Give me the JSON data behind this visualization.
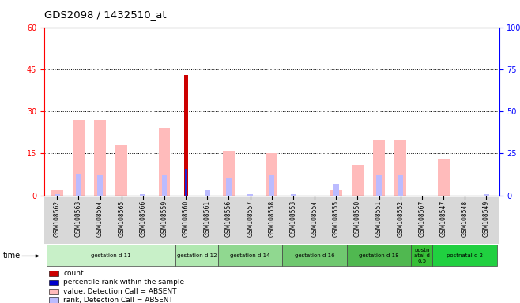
{
  "title": "GDS2098 / 1432510_at",
  "samples": [
    "GSM108562",
    "GSM108563",
    "GSM108564",
    "GSM108565",
    "GSM108566",
    "GSM108559",
    "GSM108560",
    "GSM108561",
    "GSM108556",
    "GSM108557",
    "GSM108558",
    "GSM108553",
    "GSM108554",
    "GSM108555",
    "GSM108550",
    "GSM108551",
    "GSM108552",
    "GSM108567",
    "GSM108547",
    "GSM108548",
    "GSM108549"
  ],
  "pink_values": [
    2,
    27,
    27,
    18,
    0,
    24,
    0,
    0,
    16,
    0,
    15,
    0,
    0,
    2,
    11,
    20,
    20,
    0,
    13,
    0,
    0
  ],
  "red_values": [
    0,
    0,
    0,
    0,
    0,
    0,
    43,
    0,
    0,
    0,
    0,
    0,
    0,
    0,
    0,
    0,
    0,
    0,
    0,
    0,
    0
  ],
  "light_blue_ranks": [
    1,
    13,
    12,
    0,
    1,
    12,
    0,
    3,
    10,
    1,
    12,
    1,
    0,
    7,
    0,
    12,
    12,
    0,
    0,
    0,
    1
  ],
  "blue_ranks": [
    0,
    0,
    0,
    0,
    0,
    0,
    16,
    0,
    0,
    0,
    0,
    0,
    0,
    0,
    0,
    0,
    0,
    0,
    0,
    0,
    0
  ],
  "groups": [
    {
      "label": "gestation d 11",
      "start": 0,
      "end": 5,
      "color": "#c8f0c8"
    },
    {
      "label": "gestation d 12",
      "start": 6,
      "end": 7,
      "color": "#b0e8b0"
    },
    {
      "label": "gestation d 14",
      "start": 8,
      "end": 10,
      "color": "#90d890"
    },
    {
      "label": "gestation d 16",
      "start": 11,
      "end": 13,
      "color": "#70c870"
    },
    {
      "label": "gestation d 18",
      "start": 14,
      "end": 16,
      "color": "#50b850"
    },
    {
      "label": "postn\natal d\n0.5",
      "start": 17,
      "end": 17,
      "color": "#30b830"
    },
    {
      "label": "postnatal d 2",
      "start": 18,
      "end": 20,
      "color": "#20c840"
    }
  ],
  "ylim_left": [
    0,
    60
  ],
  "ylim_right": [
    0,
    100
  ],
  "yticks_left": [
    0,
    15,
    30,
    45,
    60
  ],
  "yticks_right": [
    0,
    25,
    50,
    75,
    100
  ],
  "legend_items": [
    {
      "label": "count",
      "color": "#cc0000"
    },
    {
      "label": "percentile rank within the sample",
      "color": "#0000cc"
    },
    {
      "label": "value, Detection Call = ABSENT",
      "color": "#ffbbbb"
    },
    {
      "label": "rank, Detection Call = ABSENT",
      "color": "#bbbbff"
    }
  ]
}
